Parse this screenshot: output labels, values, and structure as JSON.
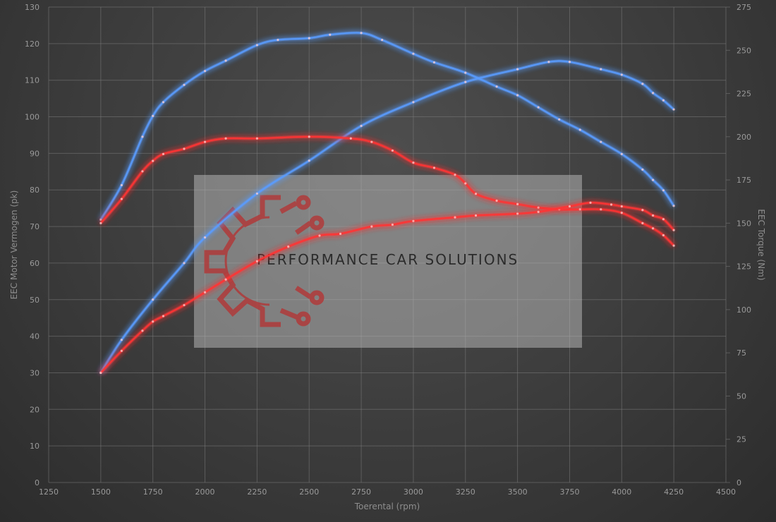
{
  "chart_data": {
    "type": "line",
    "xlabel": "Toerental (rpm)",
    "ylabel": "EEC Motor Vermogen (pk)",
    "y2label": "EEC Torque (Nm)",
    "xlim": [
      1250,
      4500
    ],
    "ylim": [
      0,
      130
    ],
    "y2lim": [
      0,
      275
    ],
    "x_ticks": [
      1250,
      1500,
      1750,
      2000,
      2250,
      2500,
      2750,
      3000,
      3250,
      3500,
      3750,
      4000,
      4250,
      4500
    ],
    "y_ticks": [
      0,
      10,
      20,
      30,
      40,
      50,
      60,
      70,
      80,
      90,
      100,
      110,
      120,
      130
    ],
    "y2_ticks": [
      0,
      25,
      50,
      75,
      100,
      125,
      150,
      175,
      200,
      225,
      250,
      275
    ],
    "grid": true,
    "colors": {
      "tuned": "#5a9cff",
      "stock": "#ff3434",
      "background": "#3c3c3c"
    },
    "series": [
      {
        "key": "torque_tuned",
        "axis": "right",
        "color": "#5a9cff",
        "x": [
          1500,
          1600,
          1700,
          1750,
          1800,
          1900,
          2000,
          2100,
          2250,
          2350,
          2500,
          2600,
          2750,
          2850,
          3000,
          3100,
          3250,
          3400,
          3500,
          3600,
          3700,
          3800,
          3900,
          4000,
          4100,
          4150,
          4200,
          4250
        ],
        "y": [
          152,
          172,
          200,
          212,
          220,
          230,
          238,
          244,
          253,
          256,
          257,
          259,
          260,
          256,
          248,
          243,
          237,
          229,
          224,
          217,
          210,
          204,
          197,
          190,
          181,
          175,
          169,
          160
        ]
      },
      {
        "key": "power_tuned",
        "axis": "left",
        "color": "#5a9cff",
        "x": [
          1500,
          1600,
          1750,
          1900,
          2000,
          2250,
          2500,
          2750,
          3000,
          3250,
          3500,
          3650,
          3750,
          3900,
          4000,
          4100,
          4150,
          4200,
          4250
        ],
        "y": [
          30,
          39,
          50,
          60,
          67,
          79,
          88,
          97.5,
          104,
          109.5,
          113,
          115,
          115,
          113,
          111.5,
          109,
          106.5,
          104.5,
          102
        ]
      },
      {
        "key": "torque_stock",
        "axis": "right",
        "color": "#ff3434",
        "x": [
          1500,
          1600,
          1700,
          1750,
          1800,
          1900,
          2000,
          2100,
          2250,
          2500,
          2700,
          2800,
          2900,
          3000,
          3100,
          3200,
          3250,
          3300,
          3400,
          3500,
          3600,
          3700,
          3800,
          3900,
          4000,
          4100,
          4150,
          4200,
          4250
        ],
        "y": [
          150,
          164,
          180,
          186,
          190,
          193,
          197,
          199,
          199,
          200,
          199,
          197,
          192,
          185,
          182,
          178,
          173,
          167,
          163,
          161,
          159,
          158,
          158,
          158,
          156,
          150,
          147,
          143,
          137
        ]
      },
      {
        "key": "power_stock",
        "axis": "left",
        "color": "#ff3434",
        "x": [
          1500,
          1600,
          1700,
          1750,
          1800,
          1900,
          2000,
          2100,
          2250,
          2400,
          2550,
          2650,
          2800,
          2900,
          3000,
          3200,
          3300,
          3500,
          3600,
          3750,
          3850,
          3950,
          4000,
          4100,
          4150,
          4200,
          4250
        ],
        "y": [
          30,
          36,
          41.5,
          44,
          45.5,
          48.5,
          52,
          55.5,
          60.5,
          64.5,
          67.5,
          68,
          70,
          70.5,
          71.5,
          72.5,
          73,
          73.5,
          74,
          75.5,
          76.5,
          76,
          75.5,
          74.5,
          73,
          72,
          69
        ]
      }
    ]
  },
  "watermark": {
    "text": "PERFORMANCE CAR SOLUTIONS",
    "logo": "gear-circuit-logo"
  }
}
